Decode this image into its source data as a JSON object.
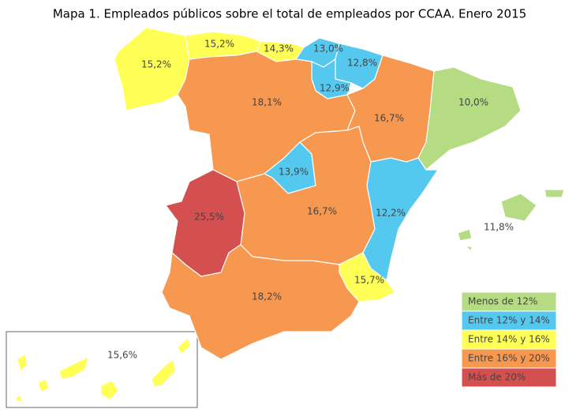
{
  "chart_data": {
    "type": "choropleth",
    "title": "Mapa 1. Empleados públicos sobre el total de empleados por CCAA. Enero 2015",
    "values": [
      15.2,
      15.2,
      14.3,
      13.0,
      12.8,
      12.9,
      18.1,
      16.7,
      10.0,
      13.9,
      16.7,
      12.2,
      11.8,
      25.5,
      15.7,
      18.2,
      15.6
    ],
    "value_labels": [
      "15,2%",
      "15,2%",
      "14,3%",
      "13,0%",
      "12,8%",
      "12,9%",
      "18,1%",
      "16,7%",
      "10,0%",
      "13,9%",
      "16,7%",
      "12,2%",
      "11,8%",
      "25,5%",
      "15,7%",
      "18,2%",
      "15,6%"
    ],
    "legend": [
      {
        "label": "Menos de 12%",
        "max": 12,
        "color": "#b5dc82"
      },
      {
        "label": "Entre 12% y 14%",
        "min": 12,
        "max": 14,
        "color": "#55c8f0"
      },
      {
        "label": "Entre 14% y 16%",
        "min": 14,
        "max": 16,
        "color": "#ffff55"
      },
      {
        "label": "Entre 16% y 20%",
        "min": 16,
        "max": 20,
        "color": "#f79850"
      },
      {
        "label": "Más de 20%",
        "min": 20,
        "color": "#d44f4f"
      }
    ]
  }
}
